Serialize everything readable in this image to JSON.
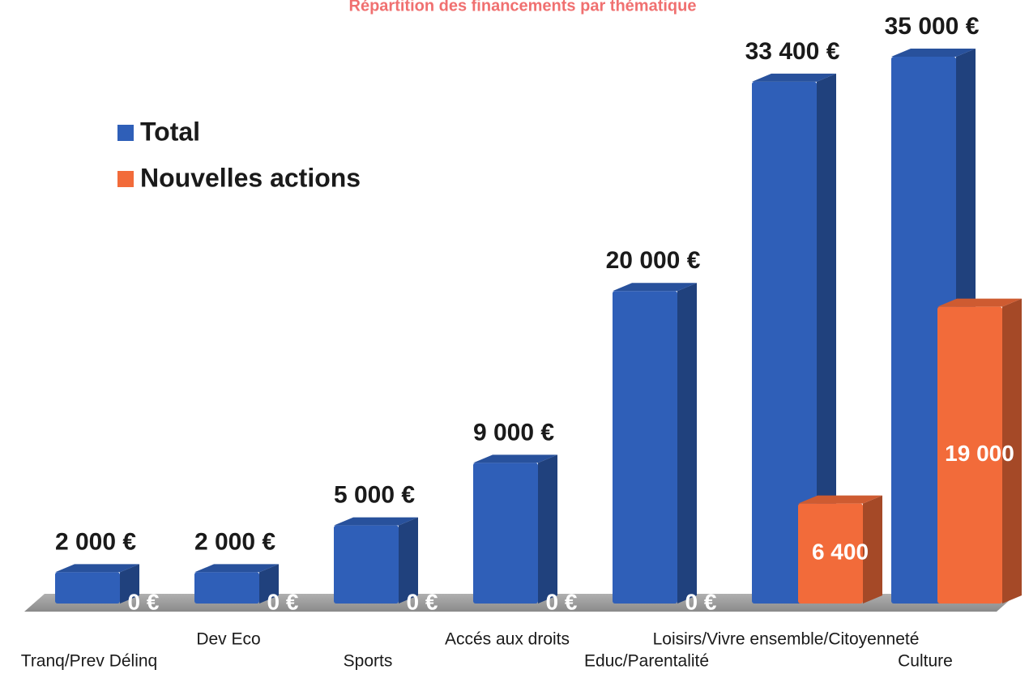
{
  "chart_data": {
    "type": "bar3d",
    "title": "Répartition des financements  par thématique",
    "categories": [
      "Tranq/Prev Délinq",
      "Dev Eco",
      "Sports",
      "Accés aux droits",
      "Educ/Parentalité",
      "Loisirs/Vivre ensemble/Citoyenneté",
      "Culture"
    ],
    "series": [
      {
        "name": "Total",
        "color": "#2f5fb8",
        "values": [
          2000,
          2000,
          5000,
          9000,
          20000,
          33400,
          35000
        ],
        "value_labels": [
          "2 000 €",
          "2 000 €",
          "5 000 €",
          "9 000 €",
          "20 000 €",
          "33 400 €",
          "35 000 €"
        ]
      },
      {
        "name": "Nouvelles actions",
        "color": "#f26b3a",
        "values": [
          0,
          0,
          0,
          0,
          0,
          6400,
          19000
        ],
        "value_labels": [
          "0 €",
          "0 €",
          "0 €",
          "0 €",
          "0 €",
          "6 400",
          "19 000"
        ]
      }
    ],
    "ylim": [
      0,
      35000
    ]
  }
}
